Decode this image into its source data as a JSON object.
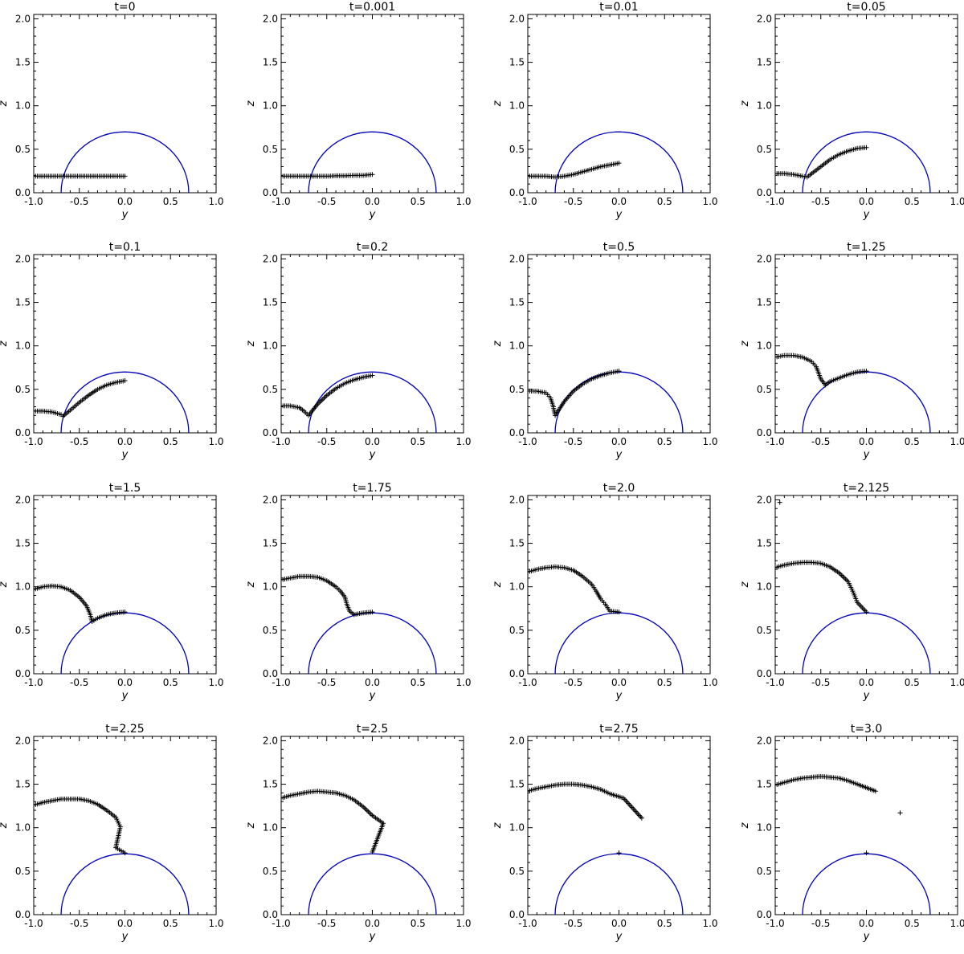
{
  "figure": {
    "type": "panel-grid",
    "rows": 4,
    "cols": 4,
    "xlabel": "y",
    "ylabel": "z",
    "xlim": [
      -1.0,
      1.0
    ],
    "ylim": [
      0.0,
      2.05
    ],
    "x_tick_labels": [
      "-1.0",
      "-0.5",
      "0.0",
      "0.5",
      "1.0"
    ],
    "y_tick_labels": [
      "0.0",
      "0.5",
      "1.0",
      "1.5",
      "2.0"
    ],
    "grid": false,
    "colors": {
      "circle": "#0000b8",
      "markers": "#000000",
      "axes": "#000000"
    }
  },
  "chart_data": [
    {
      "type": "scatter",
      "title": "t=0",
      "reference_circle": {
        "center": [
          0,
          0
        ],
        "radius": 0.7
      },
      "series": [
        {
          "marker": "+",
          "x": [
            -1.0,
            -0.9,
            -0.8,
            -0.7,
            -0.6,
            -0.5,
            -0.4,
            -0.3,
            -0.2,
            -0.1,
            0.0
          ],
          "y": [
            0.19,
            0.19,
            0.19,
            0.19,
            0.19,
            0.19,
            0.19,
            0.19,
            0.19,
            0.19,
            0.19
          ]
        }
      ]
    },
    {
      "type": "scatter",
      "title": "t=0.001",
      "reference_circle": {
        "center": [
          0,
          0
        ],
        "radius": 0.7
      },
      "series": [
        {
          "marker": "+",
          "x": [
            -1.0,
            -0.9,
            -0.8,
            -0.7,
            -0.6,
            -0.5,
            -0.4,
            -0.3,
            -0.2,
            -0.1,
            0.0
          ],
          "y": [
            0.19,
            0.19,
            0.19,
            0.19,
            0.19,
            0.19,
            0.195,
            0.195,
            0.2,
            0.2,
            0.21
          ]
        }
      ]
    },
    {
      "type": "scatter",
      "title": "t=0.01",
      "reference_circle": {
        "center": [
          0,
          0
        ],
        "radius": 0.7
      },
      "series": [
        {
          "marker": "+",
          "x": [
            -1.0,
            -0.9,
            -0.8,
            -0.7,
            -0.6,
            -0.5,
            -0.4,
            -0.3,
            -0.2,
            -0.1,
            0.0
          ],
          "y": [
            0.19,
            0.19,
            0.19,
            0.18,
            0.19,
            0.21,
            0.24,
            0.27,
            0.3,
            0.32,
            0.34
          ]
        }
      ]
    },
    {
      "type": "scatter",
      "title": "t=0.05",
      "reference_circle": {
        "center": [
          0,
          0
        ],
        "radius": 0.7
      },
      "series": [
        {
          "marker": "+",
          "x": [
            -1.0,
            -0.9,
            -0.8,
            -0.7,
            -0.65,
            -0.6,
            -0.5,
            -0.4,
            -0.3,
            -0.2,
            -0.1,
            0.0
          ],
          "y": [
            0.22,
            0.22,
            0.21,
            0.19,
            0.18,
            0.22,
            0.3,
            0.38,
            0.44,
            0.48,
            0.51,
            0.52
          ]
        }
      ]
    },
    {
      "type": "scatter",
      "title": "t=0.1",
      "reference_circle": {
        "center": [
          0,
          0
        ],
        "radius": 0.7
      },
      "series": [
        {
          "marker": "+",
          "x": [
            -1.0,
            -0.9,
            -0.8,
            -0.7,
            -0.68,
            -0.6,
            -0.5,
            -0.4,
            -0.3,
            -0.2,
            -0.1,
            0.0
          ],
          "y": [
            0.25,
            0.25,
            0.24,
            0.21,
            0.19,
            0.26,
            0.35,
            0.43,
            0.5,
            0.55,
            0.58,
            0.6
          ]
        }
      ]
    },
    {
      "type": "scatter",
      "title": "t=0.2",
      "reference_circle": {
        "center": [
          0,
          0
        ],
        "radius": 0.7
      },
      "series": [
        {
          "marker": "+",
          "x": [
            -1.0,
            -0.9,
            -0.8,
            -0.75,
            -0.7,
            -0.6,
            -0.5,
            -0.4,
            -0.3,
            -0.2,
            -0.1,
            0.0
          ],
          "y": [
            0.31,
            0.31,
            0.29,
            0.25,
            0.2,
            0.33,
            0.43,
            0.51,
            0.57,
            0.61,
            0.64,
            0.66
          ]
        }
      ]
    },
    {
      "type": "scatter",
      "title": "t=0.5",
      "reference_circle": {
        "center": [
          0,
          0
        ],
        "radius": 0.7
      },
      "series": [
        {
          "marker": "+",
          "x": [
            -1.0,
            -0.9,
            -0.8,
            -0.75,
            -0.72,
            -0.7,
            -0.6,
            -0.5,
            -0.4,
            -0.3,
            -0.2,
            -0.1,
            0.0
          ],
          "y": [
            0.48,
            0.48,
            0.46,
            0.4,
            0.3,
            0.2,
            0.36,
            0.48,
            0.56,
            0.62,
            0.66,
            0.69,
            0.71
          ]
        }
      ]
    },
    {
      "type": "scatter",
      "title": "t=1.25",
      "reference_circle": {
        "center": [
          0,
          0
        ],
        "radius": 0.7
      },
      "series": [
        {
          "marker": "+",
          "x": [
            -1.0,
            -0.9,
            -0.8,
            -0.7,
            -0.6,
            -0.55,
            -0.5,
            -0.45,
            -0.4,
            -0.3,
            -0.2,
            -0.1,
            0.0
          ],
          "y": [
            0.87,
            0.89,
            0.89,
            0.87,
            0.82,
            0.76,
            0.62,
            0.55,
            0.59,
            0.63,
            0.67,
            0.7,
            0.71
          ]
        }
      ]
    },
    {
      "type": "scatter",
      "title": "t=1.5",
      "reference_circle": {
        "center": [
          0,
          0
        ],
        "radius": 0.7
      },
      "series": [
        {
          "marker": "+",
          "x": [
            -1.0,
            -0.9,
            -0.8,
            -0.7,
            -0.6,
            -0.5,
            -0.42,
            -0.38,
            -0.36,
            -0.3,
            -0.2,
            -0.1,
            0.0
          ],
          "y": [
            0.97,
            1.0,
            1.01,
            1.0,
            0.96,
            0.88,
            0.78,
            0.68,
            0.6,
            0.64,
            0.68,
            0.7,
            0.71
          ]
        }
      ]
    },
    {
      "type": "scatter",
      "title": "t=1.75",
      "reference_circle": {
        "center": [
          0,
          0
        ],
        "radius": 0.7
      },
      "series": [
        {
          "marker": "+",
          "x": [
            -1.0,
            -0.9,
            -0.8,
            -0.7,
            -0.6,
            -0.5,
            -0.4,
            -0.35,
            -0.3,
            -0.28,
            -0.25,
            -0.2,
            -0.1,
            0.0
          ],
          "y": [
            1.08,
            1.1,
            1.12,
            1.12,
            1.11,
            1.07,
            1.0,
            0.95,
            0.88,
            0.8,
            0.72,
            0.68,
            0.7,
            0.71
          ]
        }
      ]
    },
    {
      "type": "scatter",
      "title": "t=2.0",
      "reference_circle": {
        "center": [
          0,
          0
        ],
        "radius": 0.7
      },
      "series": [
        {
          "marker": "+",
          "x": [
            -1.0,
            -0.9,
            -0.8,
            -0.7,
            -0.6,
            -0.5,
            -0.4,
            -0.3,
            -0.25,
            -0.2,
            -0.15,
            -0.1,
            0.0
          ],
          "y": [
            1.17,
            1.2,
            1.22,
            1.23,
            1.22,
            1.19,
            1.12,
            1.03,
            0.95,
            0.86,
            0.8,
            0.72,
            0.71
          ]
        }
      ]
    },
    {
      "type": "scatter",
      "title": "t=2.125",
      "reference_circle": {
        "center": [
          0,
          0
        ],
        "radius": 0.7
      },
      "series": [
        {
          "marker": "+",
          "x": [
            -0.95,
            -1.0,
            -0.9,
            -0.8,
            -0.7,
            -0.6,
            -0.5,
            -0.4,
            -0.3,
            -0.2,
            -0.15,
            -0.1,
            0.0
          ],
          "y": [
            1.97,
            1.22,
            1.25,
            1.27,
            1.28,
            1.28,
            1.27,
            1.23,
            1.16,
            1.06,
            0.95,
            0.82,
            0.71
          ]
        }
      ]
    },
    {
      "type": "scatter",
      "title": "t=2.25",
      "reference_circle": {
        "center": [
          0,
          0
        ],
        "radius": 0.7
      },
      "series": [
        {
          "marker": "+",
          "x": [
            -1.0,
            -0.9,
            -0.8,
            -0.7,
            -0.6,
            -0.5,
            -0.4,
            -0.3,
            -0.2,
            -0.1,
            -0.05,
            -0.1,
            0.0
          ],
          "y": [
            1.26,
            1.29,
            1.31,
            1.33,
            1.33,
            1.33,
            1.31,
            1.27,
            1.2,
            1.12,
            1.01,
            0.77,
            0.71
          ]
        }
      ]
    },
    {
      "type": "scatter",
      "title": "t=2.5",
      "reference_circle": {
        "center": [
          0,
          0
        ],
        "radius": 0.7
      },
      "series": [
        {
          "marker": "+",
          "x": [
            -1.0,
            -0.9,
            -0.8,
            -0.7,
            -0.6,
            -0.5,
            -0.4,
            -0.3,
            -0.2,
            -0.1,
            0.0,
            0.12,
            0.0
          ],
          "y": [
            1.34,
            1.37,
            1.39,
            1.41,
            1.42,
            1.41,
            1.4,
            1.37,
            1.32,
            1.24,
            1.14,
            1.05,
            0.72
          ]
        }
      ]
    },
    {
      "type": "scatter",
      "title": "t=2.75",
      "reference_circle": {
        "center": [
          0,
          0
        ],
        "radius": 0.7
      },
      "series": [
        {
          "marker": "+",
          "x": [
            -1.0,
            -0.9,
            -0.8,
            -0.7,
            -0.6,
            -0.5,
            -0.4,
            -0.3,
            -0.2,
            -0.1,
            0.05,
            0.25,
            0.0
          ],
          "y": [
            1.42,
            1.45,
            1.47,
            1.49,
            1.5,
            1.5,
            1.49,
            1.47,
            1.44,
            1.39,
            1.34,
            1.11,
            0.71
          ]
        }
      ]
    },
    {
      "type": "scatter",
      "title": "t=3.0",
      "reference_circle": {
        "center": [
          0,
          0
        ],
        "radius": 0.7
      },
      "series": [
        {
          "marker": "+",
          "x": [
            -1.0,
            -0.9,
            -0.8,
            -0.7,
            -0.6,
            -0.5,
            -0.4,
            -0.3,
            -0.2,
            -0.1,
            0.1,
            0.37,
            0.0
          ],
          "y": [
            1.49,
            1.52,
            1.55,
            1.57,
            1.58,
            1.59,
            1.58,
            1.57,
            1.54,
            1.5,
            1.42,
            1.17,
            0.71
          ]
        }
      ]
    }
  ]
}
